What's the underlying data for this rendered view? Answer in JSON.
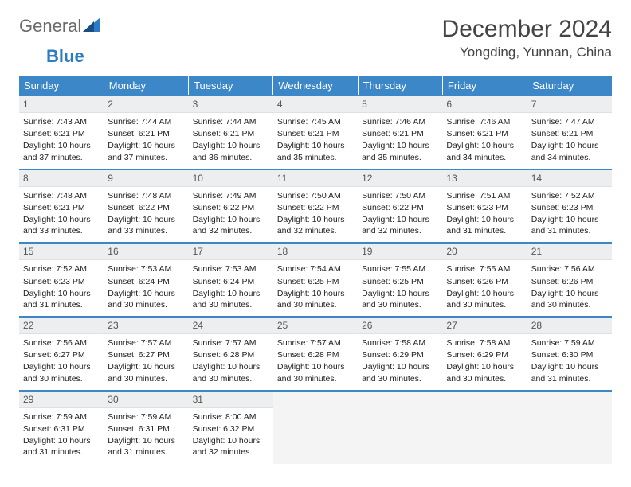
{
  "logo": {
    "text1": "General",
    "text2": "Blue"
  },
  "title": "December 2024",
  "location": "Yongding, Yunnan, China",
  "colors": {
    "header_bg": "#3b87c8",
    "row_sep": "#3b87c8",
    "daynum_bg": "#eceef0",
    "empty_bg": "#f4f4f4",
    "logo_gray": "#6b6b6b",
    "logo_blue": "#2b7cc4"
  },
  "days_of_week": [
    "Sunday",
    "Monday",
    "Tuesday",
    "Wednesday",
    "Thursday",
    "Friday",
    "Saturday"
  ],
  "weeks": [
    [
      {
        "n": "1",
        "sr": "Sunrise: 7:43 AM",
        "ss": "Sunset: 6:21 PM",
        "dl": "Daylight: 10 hours and 37 minutes."
      },
      {
        "n": "2",
        "sr": "Sunrise: 7:44 AM",
        "ss": "Sunset: 6:21 PM",
        "dl": "Daylight: 10 hours and 37 minutes."
      },
      {
        "n": "3",
        "sr": "Sunrise: 7:44 AM",
        "ss": "Sunset: 6:21 PM",
        "dl": "Daylight: 10 hours and 36 minutes."
      },
      {
        "n": "4",
        "sr": "Sunrise: 7:45 AM",
        "ss": "Sunset: 6:21 PM",
        "dl": "Daylight: 10 hours and 35 minutes."
      },
      {
        "n": "5",
        "sr": "Sunrise: 7:46 AM",
        "ss": "Sunset: 6:21 PM",
        "dl": "Daylight: 10 hours and 35 minutes."
      },
      {
        "n": "6",
        "sr": "Sunrise: 7:46 AM",
        "ss": "Sunset: 6:21 PM",
        "dl": "Daylight: 10 hours and 34 minutes."
      },
      {
        "n": "7",
        "sr": "Sunrise: 7:47 AM",
        "ss": "Sunset: 6:21 PM",
        "dl": "Daylight: 10 hours and 34 minutes."
      }
    ],
    [
      {
        "n": "8",
        "sr": "Sunrise: 7:48 AM",
        "ss": "Sunset: 6:21 PM",
        "dl": "Daylight: 10 hours and 33 minutes."
      },
      {
        "n": "9",
        "sr": "Sunrise: 7:48 AM",
        "ss": "Sunset: 6:22 PM",
        "dl": "Daylight: 10 hours and 33 minutes."
      },
      {
        "n": "10",
        "sr": "Sunrise: 7:49 AM",
        "ss": "Sunset: 6:22 PM",
        "dl": "Daylight: 10 hours and 32 minutes."
      },
      {
        "n": "11",
        "sr": "Sunrise: 7:50 AM",
        "ss": "Sunset: 6:22 PM",
        "dl": "Daylight: 10 hours and 32 minutes."
      },
      {
        "n": "12",
        "sr": "Sunrise: 7:50 AM",
        "ss": "Sunset: 6:22 PM",
        "dl": "Daylight: 10 hours and 32 minutes."
      },
      {
        "n": "13",
        "sr": "Sunrise: 7:51 AM",
        "ss": "Sunset: 6:23 PM",
        "dl": "Daylight: 10 hours and 31 minutes."
      },
      {
        "n": "14",
        "sr": "Sunrise: 7:52 AM",
        "ss": "Sunset: 6:23 PM",
        "dl": "Daylight: 10 hours and 31 minutes."
      }
    ],
    [
      {
        "n": "15",
        "sr": "Sunrise: 7:52 AM",
        "ss": "Sunset: 6:23 PM",
        "dl": "Daylight: 10 hours and 31 minutes."
      },
      {
        "n": "16",
        "sr": "Sunrise: 7:53 AM",
        "ss": "Sunset: 6:24 PM",
        "dl": "Daylight: 10 hours and 30 minutes."
      },
      {
        "n": "17",
        "sr": "Sunrise: 7:53 AM",
        "ss": "Sunset: 6:24 PM",
        "dl": "Daylight: 10 hours and 30 minutes."
      },
      {
        "n": "18",
        "sr": "Sunrise: 7:54 AM",
        "ss": "Sunset: 6:25 PM",
        "dl": "Daylight: 10 hours and 30 minutes."
      },
      {
        "n": "19",
        "sr": "Sunrise: 7:55 AM",
        "ss": "Sunset: 6:25 PM",
        "dl": "Daylight: 10 hours and 30 minutes."
      },
      {
        "n": "20",
        "sr": "Sunrise: 7:55 AM",
        "ss": "Sunset: 6:26 PM",
        "dl": "Daylight: 10 hours and 30 minutes."
      },
      {
        "n": "21",
        "sr": "Sunrise: 7:56 AM",
        "ss": "Sunset: 6:26 PM",
        "dl": "Daylight: 10 hours and 30 minutes."
      }
    ],
    [
      {
        "n": "22",
        "sr": "Sunrise: 7:56 AM",
        "ss": "Sunset: 6:27 PM",
        "dl": "Daylight: 10 hours and 30 minutes."
      },
      {
        "n": "23",
        "sr": "Sunrise: 7:57 AM",
        "ss": "Sunset: 6:27 PM",
        "dl": "Daylight: 10 hours and 30 minutes."
      },
      {
        "n": "24",
        "sr": "Sunrise: 7:57 AM",
        "ss": "Sunset: 6:28 PM",
        "dl": "Daylight: 10 hours and 30 minutes."
      },
      {
        "n": "25",
        "sr": "Sunrise: 7:57 AM",
        "ss": "Sunset: 6:28 PM",
        "dl": "Daylight: 10 hours and 30 minutes."
      },
      {
        "n": "26",
        "sr": "Sunrise: 7:58 AM",
        "ss": "Sunset: 6:29 PM",
        "dl": "Daylight: 10 hours and 30 minutes."
      },
      {
        "n": "27",
        "sr": "Sunrise: 7:58 AM",
        "ss": "Sunset: 6:29 PM",
        "dl": "Daylight: 10 hours and 30 minutes."
      },
      {
        "n": "28",
        "sr": "Sunrise: 7:59 AM",
        "ss": "Sunset: 6:30 PM",
        "dl": "Daylight: 10 hours and 31 minutes."
      }
    ],
    [
      {
        "n": "29",
        "sr": "Sunrise: 7:59 AM",
        "ss": "Sunset: 6:31 PM",
        "dl": "Daylight: 10 hours and 31 minutes."
      },
      {
        "n": "30",
        "sr": "Sunrise: 7:59 AM",
        "ss": "Sunset: 6:31 PM",
        "dl": "Daylight: 10 hours and 31 minutes."
      },
      {
        "n": "31",
        "sr": "Sunrise: 8:00 AM",
        "ss": "Sunset: 6:32 PM",
        "dl": "Daylight: 10 hours and 32 minutes."
      },
      null,
      null,
      null,
      null
    ]
  ]
}
